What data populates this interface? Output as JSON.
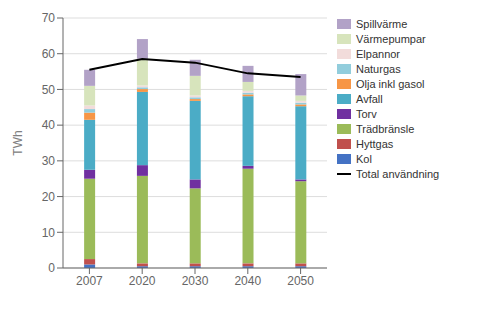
{
  "chart_data": {
    "type": "bar",
    "stacked": true,
    "ylabel": "TWh",
    "categories": [
      "2007",
      "2020",
      "2030",
      "2040",
      "2050"
    ],
    "series": [
      {
        "name": "Kol",
        "color": "#4472c4",
        "values": [
          1.0,
          0.5,
          0.5,
          0.5,
          0.5
        ]
      },
      {
        "name": "Hyttgas",
        "color": "#c0504d",
        "values": [
          1.5,
          0.8,
          0.8,
          0.8,
          0.8
        ]
      },
      {
        "name": "Trädbränsle",
        "color": "#9bbb59",
        "values": [
          22.5,
          24.5,
          21.0,
          26.5,
          23.0
        ]
      },
      {
        "name": "Torv",
        "color": "#7030a0",
        "values": [
          2.5,
          3.0,
          2.5,
          0.8,
          0.5
        ]
      },
      {
        "name": "Avfall",
        "color": "#4bacc6",
        "values": [
          14.0,
          20.5,
          22.0,
          19.5,
          20.5
        ]
      },
      {
        "name": "Olja inkl gasol",
        "color": "#f79646",
        "values": [
          2.0,
          0.8,
          0.5,
          0.5,
          0.5
        ]
      },
      {
        "name": "Naturgas",
        "color": "#92cddc",
        "values": [
          1.0,
          0.5,
          0.5,
          0.5,
          0.5
        ]
      },
      {
        "name": "Elpannor",
        "color": "#f2dcdb",
        "values": [
          1.0,
          0.5,
          0.5,
          0.5,
          0.5
        ]
      },
      {
        "name": "Värmepumpar",
        "color": "#d7e4bc",
        "values": [
          5.5,
          7.5,
          5.5,
          2.5,
          1.5
        ]
      },
      {
        "name": "Spillvärme",
        "color": "#b2a2c7",
        "values": [
          4.5,
          5.5,
          4.5,
          4.5,
          6.0
        ]
      },
      {
        "name": "Total användning",
        "type": "line",
        "color": "#000000",
        "values": [
          55.5,
          58.5,
          57.5,
          54.5,
          53.5
        ]
      }
    ],
    "ylim": [
      0,
      70
    ],
    "yticks": [
      0,
      10,
      20,
      30,
      40,
      50,
      60,
      70
    ],
    "grid": true,
    "legend": "right"
  }
}
